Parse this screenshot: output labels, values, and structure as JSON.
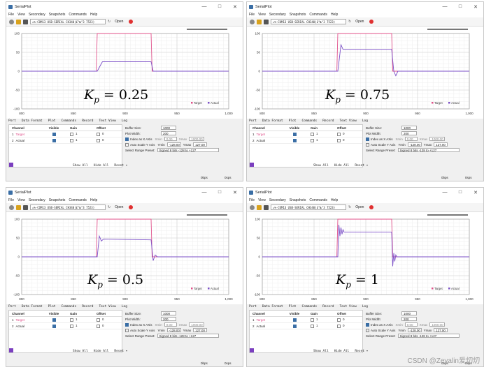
{
  "app": {
    "title": "SerialPlot",
    "menu": [
      "File",
      "View",
      "Secondary",
      "Snapshots",
      "Commands",
      "Help"
    ],
    "port": "=%-COM13 USB-SERIAL CH340(£°№°3 7523)",
    "open_label": "Open",
    "tabs": [
      "Port",
      "Data Format",
      "Plot",
      "Commands",
      "Record",
      "Text View",
      "Log"
    ],
    "legend": [
      "Target",
      "Actual"
    ],
    "channel_headers": [
      "Channel",
      "Visible",
      "Gain",
      "Offset"
    ],
    "channels": [
      {
        "index": "1",
        "name": "Target",
        "gain": "1",
        "offset": "0"
      },
      {
        "index": "2",
        "name": "Actual",
        "gain": "1",
        "offset": "0"
      }
    ],
    "channel_buttons": [
      "Show All",
      "Hide All",
      "Reset ▾"
    ],
    "buffer_label": "Buffer Size:",
    "buffer_value": "1000",
    "plot_width_label": "Plot Width:",
    "plot_width_value": "200",
    "index_label": "Index as X AXis",
    "xmin_label": "Xmin",
    "xmin_value": "0.00",
    "xmax_label": "Xmax",
    "xmax_value": "1000.00",
    "autoscale_label": "Auto Scale Y Axis",
    "ymin_label": "Ymin",
    "ymin_value": "-128.00",
    "ymax_label": "Ymax",
    "ymax_value": "127.00",
    "range_label": "Select Range Preset:",
    "range_value": "Signed 8 bits -128 to +127",
    "status_left": "0bps",
    "status_right": "0sps",
    "colors": {
      "target": "#e0508a",
      "actual": "#7b4fc7"
    }
  },
  "panels": [
    {
      "kp_prefix": "K",
      "kp_sub": "p",
      "kp_rest": " = 0.25"
    },
    {
      "kp_prefix": "K",
      "kp_sub": "p",
      "kp_rest": " = 0.75"
    },
    {
      "kp_prefix": "K",
      "kp_sub": "p",
      "kp_rest": " = 0.5"
    },
    {
      "kp_prefix": "K",
      "kp_sub": "p",
      "kp_rest": " = 1"
    }
  ],
  "chart_data": [
    {
      "type": "line",
      "ylim": [
        -100,
        100
      ],
      "xlim": [
        800,
        1000
      ],
      "yticks": [
        "100",
        "50",
        "0",
        "-50",
        "-100"
      ],
      "xticks": [
        "800",
        "850",
        "900",
        "950",
        "1,000"
      ],
      "series": [
        {
          "name": "Target",
          "x": [
            800,
            872,
            873,
            925,
            926,
            1000
          ],
          "y": [
            0,
            0,
            100,
            100,
            0,
            0
          ]
        },
        {
          "name": "Actual",
          "x": [
            800,
            873,
            878,
            925,
            927,
            1000
          ],
          "y": [
            0,
            0,
            25,
            25,
            0,
            0
          ]
        }
      ]
    },
    {
      "type": "line",
      "ylim": [
        -100,
        100
      ],
      "xlim": [
        800,
        1000
      ],
      "yticks": [
        "100",
        "50",
        "0",
        "-50",
        "-100"
      ],
      "xticks": [
        "800",
        "850",
        "900",
        "950",
        "1,000"
      ],
      "series": [
        {
          "name": "Target",
          "x": [
            800,
            872,
            873,
            925,
            926,
            1000
          ],
          "y": [
            0,
            0,
            100,
            100,
            0,
            0
          ]
        },
        {
          "name": "Actual",
          "x": [
            800,
            873,
            876,
            878,
            925,
            927,
            929,
            931,
            1000
          ],
          "y": [
            0,
            0,
            70,
            58,
            58,
            0,
            -12,
            0,
            0
          ]
        }
      ]
    },
    {
      "type": "line",
      "ylim": [
        -100,
        100
      ],
      "xlim": [
        800,
        1000
      ],
      "yticks": [
        "100",
        "50",
        "0",
        "-50",
        "-100"
      ],
      "xticks": [
        "800",
        "850",
        "900",
        "950",
        "1,000"
      ],
      "series": [
        {
          "name": "Target",
          "x": [
            800,
            872,
            873,
            925,
            926,
            1000
          ],
          "y": [
            0,
            0,
            100,
            100,
            0,
            0
          ]
        },
        {
          "name": "Actual",
          "x": [
            800,
            873,
            875,
            877,
            879,
            925,
            927,
            929,
            931,
            1000
          ],
          "y": [
            0,
            0,
            55,
            42,
            47,
            45,
            -10,
            5,
            0,
            0
          ]
        }
      ]
    },
    {
      "type": "line",
      "ylim": [
        -100,
        100
      ],
      "xlim": [
        800,
        1000
      ],
      "yticks": [
        "100",
        "50",
        "0",
        "-50",
        "-100"
      ],
      "xticks": [
        "800",
        "850",
        "900",
        "950",
        "1,000"
      ],
      "series": [
        {
          "name": "Target",
          "x": [
            800,
            872,
            873,
            925,
            926,
            1000
          ],
          "y": [
            0,
            0,
            100,
            100,
            0,
            0
          ]
        },
        {
          "name": "Actual",
          "x": [
            800,
            873,
            874,
            875,
            876,
            877,
            878,
            879,
            925,
            926,
            927,
            928,
            929,
            930,
            1000
          ],
          "y": [
            0,
            0,
            85,
            55,
            78,
            60,
            72,
            66,
            66,
            -25,
            10,
            -12,
            5,
            0,
            0
          ]
        }
      ]
    }
  ],
  "watermark": "CSDN @Zevalin爱灱灱"
}
